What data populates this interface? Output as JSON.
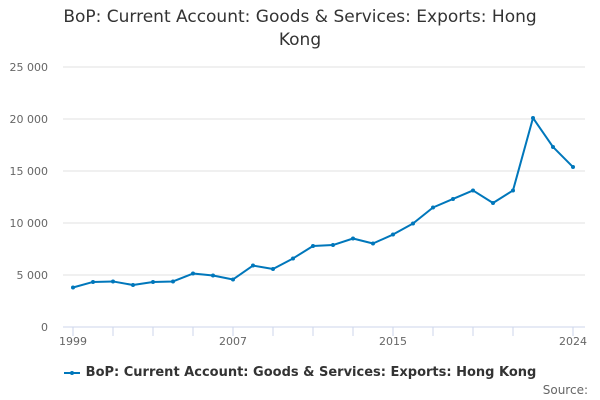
{
  "chart_data": {
    "type": "line",
    "title": "BoP: Current Account: Goods & Services: Exports: Hong Kong",
    "xlabel": "",
    "ylabel": "",
    "ylim": [
      0,
      25000
    ],
    "yticks": [
      0,
      5000,
      10000,
      15000,
      20000,
      25000
    ],
    "ytick_labels": [
      "0",
      "5 000",
      "10 000",
      "15 000",
      "20 000",
      "25 000"
    ],
    "xtick_labels": [
      "1999",
      "2007",
      "2015",
      "2024"
    ],
    "grid": true,
    "legend_position": "bottom",
    "x": [
      1999,
      2000,
      2001,
      2002,
      2003,
      2004,
      2005,
      2006,
      2007,
      2008,
      2009,
      2010,
      2011,
      2012,
      2013,
      2014,
      2015,
      2016,
      2017,
      2018,
      2019,
      2020,
      2021,
      2022,
      2023,
      2024
    ],
    "series": [
      {
        "name": "BoP: Current Account: Goods & Services: Exports: Hong Kong",
        "color": "#0077bb",
        "values": [
          3800,
          4330,
          4380,
          4040,
          4330,
          4380,
          5140,
          4950,
          4570,
          5910,
          5580,
          6590,
          7790,
          7880,
          8510,
          8030,
          8890,
          9950,
          11490,
          12310,
          13130,
          11920,
          13130,
          20100,
          17310,
          15380
        ]
      }
    ]
  },
  "title_line1": "BoP: Current Account: Goods & Services: Exports: Hong",
  "title_line2": "Kong",
  "legend_label": "BoP: Current Account: Goods & Services: Exports: Hong Kong",
  "source_label": "Source:"
}
